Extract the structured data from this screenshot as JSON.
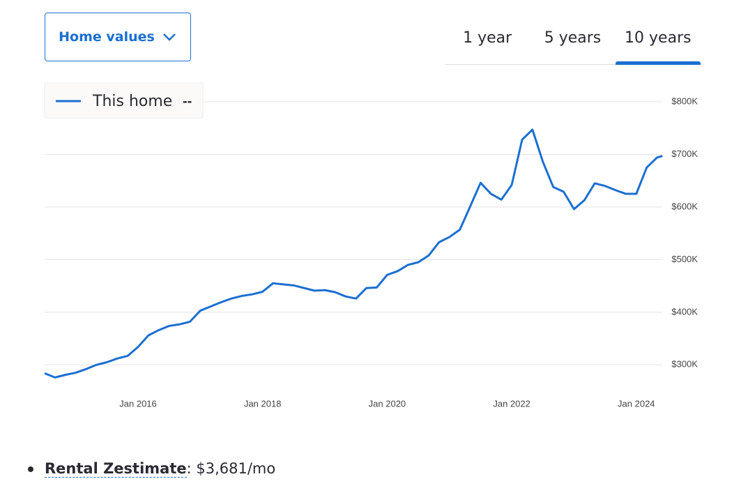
{
  "header": {
    "dropdown": "Home values",
    "tabs": [
      "1 year",
      "5 years",
      "10 years"
    ],
    "selected_tab": 2
  },
  "chart_data": {
    "type": "line",
    "x": [
      2014.5,
      2014.667,
      2014.833,
      2015.0,
      2015.167,
      2015.333,
      2015.5,
      2015.667,
      2015.833,
      2016.0,
      2016.167,
      2016.333,
      2016.5,
      2016.667,
      2016.833,
      2017.0,
      2017.167,
      2017.333,
      2017.5,
      2017.667,
      2017.833,
      2018.0,
      2018.167,
      2018.333,
      2018.5,
      2018.667,
      2018.833,
      2019.0,
      2019.167,
      2019.333,
      2019.5,
      2019.667,
      2019.833,
      2020.0,
      2020.167,
      2020.333,
      2020.5,
      2020.667,
      2020.833,
      2021.0,
      2021.167,
      2021.333,
      2021.5,
      2021.667,
      2021.833,
      2022.0,
      2022.167,
      2022.333,
      2022.5,
      2022.667,
      2022.833,
      2023.0,
      2023.167,
      2023.333,
      2023.5,
      2023.667,
      2023.833,
      2024.0,
      2024.167,
      2024.333,
      2024.42
    ],
    "series": [
      {
        "name": "This home",
        "legend_value": "--",
        "color": "#1b6fd1",
        "values": [
          284,
          276,
          281,
          285,
          292,
          300,
          305,
          312,
          317,
          334,
          356,
          366,
          374,
          377,
          382,
          403,
          411,
          419,
          426,
          431,
          434,
          439,
          455,
          453,
          451,
          446,
          441,
          442,
          438,
          430,
          426,
          446,
          447,
          471,
          478,
          490,
          495,
          508,
          533,
          543,
          557,
          601,
          646,
          625,
          614,
          642,
          728,
          747,
          686,
          638,
          629,
          596,
          613,
          645,
          640,
          632,
          625,
          625,
          675,
          694,
          697
        ]
      }
    ],
    "xlim": [
      2014.5,
      2024.45
    ],
    "xticks": [
      {
        "value": 2016,
        "label": "Jan 2016"
      },
      {
        "value": 2018,
        "label": "Jan 2018"
      },
      {
        "value": 2020,
        "label": "Jan 2020"
      },
      {
        "value": 2022,
        "label": "Jan 2022"
      },
      {
        "value": 2024,
        "label": "Jan 2024"
      }
    ],
    "ylim": [
      250,
      800
    ],
    "yticks": [
      {
        "value": 300,
        "label": "$300K"
      },
      {
        "value": 400,
        "label": "$400K"
      },
      {
        "value": 500,
        "label": "$500K"
      },
      {
        "value": 600,
        "label": "$600K"
      },
      {
        "value": 700,
        "label": "$700K"
      },
      {
        "value": 800,
        "label": "$800K"
      }
    ],
    "grid": true
  },
  "facts": [
    {
      "label": "Rental Zestimate",
      "value": ": $3,681/mo"
    }
  ]
}
